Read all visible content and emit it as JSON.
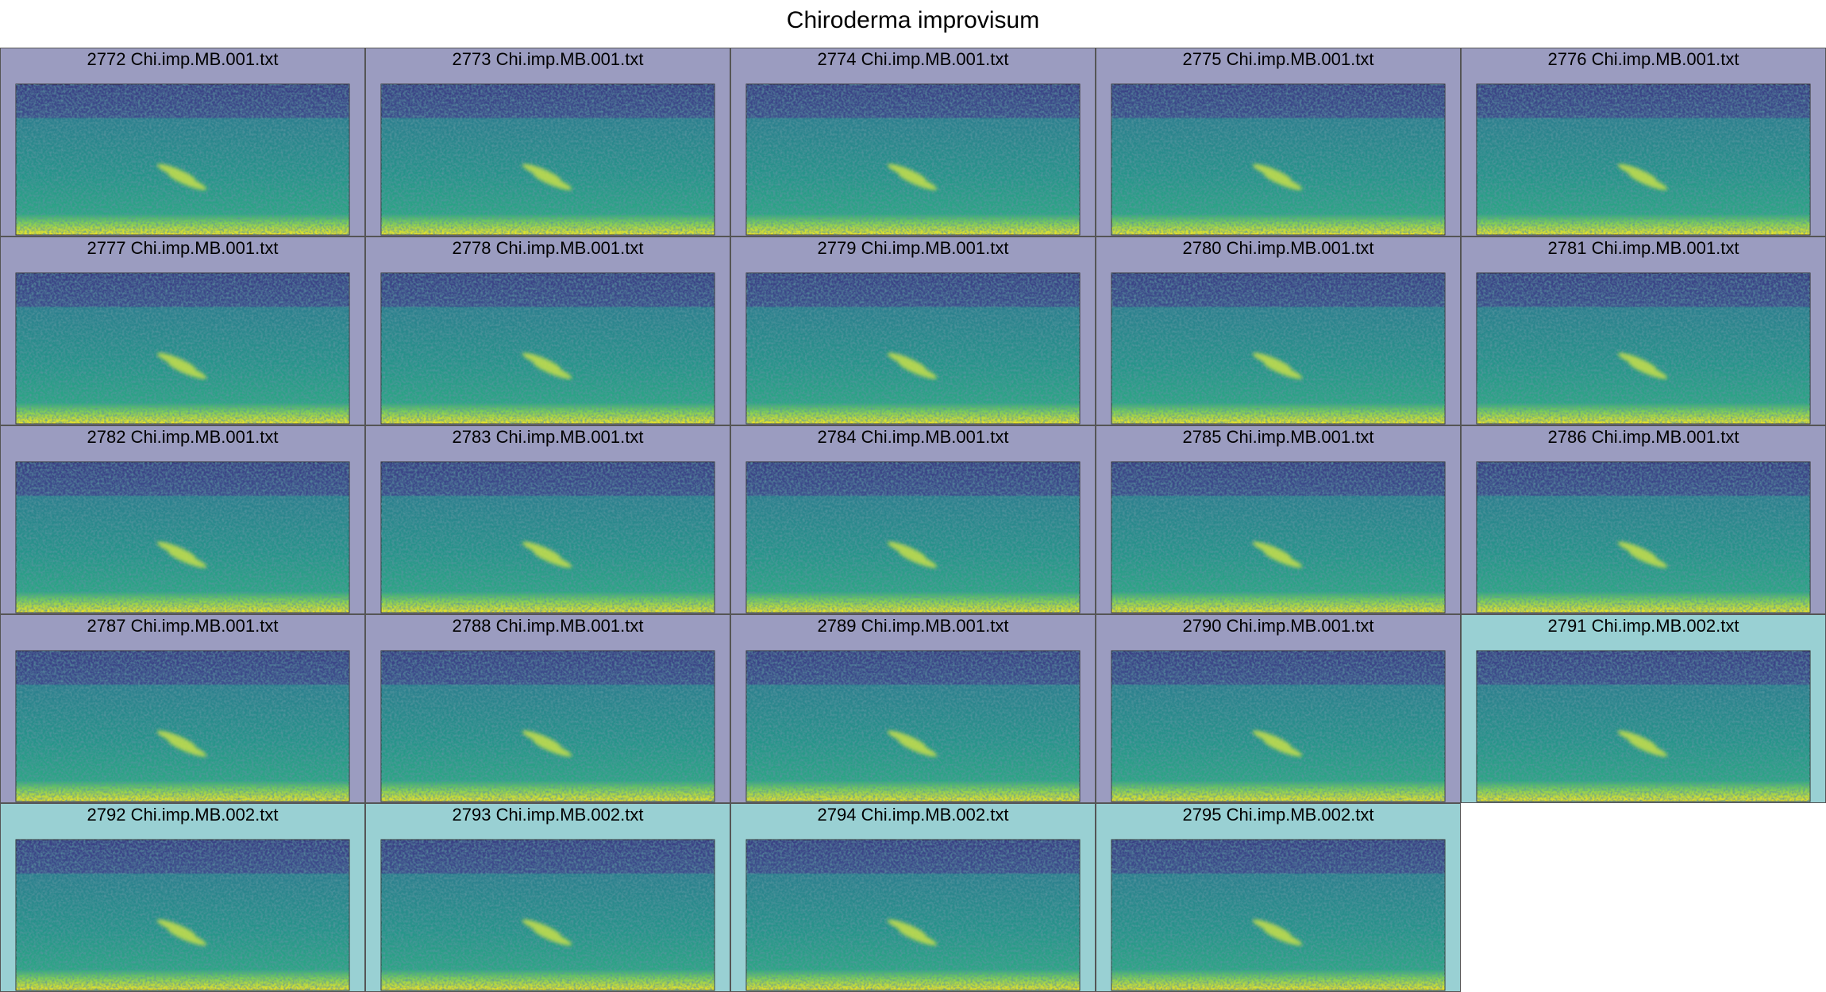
{
  "title": "Chiroderma improvisum",
  "panels": [
    {
      "label": "2772 Chi.imp.MB.001.txt",
      "color": "#9b9cc0"
    },
    {
      "label": "2773 Chi.imp.MB.001.txt",
      "color": "#9b9cc0"
    },
    {
      "label": "2774 Chi.imp.MB.001.txt",
      "color": "#9b9cc0"
    },
    {
      "label": "2775 Chi.imp.MB.001.txt",
      "color": "#9b9cc0"
    },
    {
      "label": "2776 Chi.imp.MB.001.txt",
      "color": "#9b9cc0"
    },
    {
      "label": "2777 Chi.imp.MB.001.txt",
      "color": "#9b9cc0"
    },
    {
      "label": "2778 Chi.imp.MB.001.txt",
      "color": "#9b9cc0"
    },
    {
      "label": "2779 Chi.imp.MB.001.txt",
      "color": "#9b9cc0"
    },
    {
      "label": "2780 Chi.imp.MB.001.txt",
      "color": "#9b9cc0"
    },
    {
      "label": "2781 Chi.imp.MB.001.txt",
      "color": "#9b9cc0"
    },
    {
      "label": "2782 Chi.imp.MB.001.txt",
      "color": "#9b9cc0"
    },
    {
      "label": "2783 Chi.imp.MB.001.txt",
      "color": "#9b9cc0"
    },
    {
      "label": "2784 Chi.imp.MB.001.txt",
      "color": "#9b9cc0"
    },
    {
      "label": "2785 Chi.imp.MB.001.txt",
      "color": "#9b9cc0"
    },
    {
      "label": "2786 Chi.imp.MB.001.txt",
      "color": "#9b9cc0"
    },
    {
      "label": "2787 Chi.imp.MB.001.txt",
      "color": "#9b9cc0"
    },
    {
      "label": "2788 Chi.imp.MB.001.txt",
      "color": "#9b9cc0"
    },
    {
      "label": "2789 Chi.imp.MB.001.txt",
      "color": "#9b9cc0"
    },
    {
      "label": "2790 Chi.imp.MB.001.txt",
      "color": "#9b9cc0"
    },
    {
      "label": "2791 Chi.imp.MB.002.txt",
      "color": "#99d0d3"
    },
    {
      "label": "2792 Chi.imp.MB.002.txt",
      "color": "#99d0d3"
    },
    {
      "label": "2793 Chi.imp.MB.002.txt",
      "color": "#99d0d3"
    },
    {
      "label": "2794 Chi.imp.MB.002.txt",
      "color": "#99d0d3"
    },
    {
      "label": "2795 Chi.imp.MB.002.txt",
      "color": "#99d0d3"
    }
  ]
}
